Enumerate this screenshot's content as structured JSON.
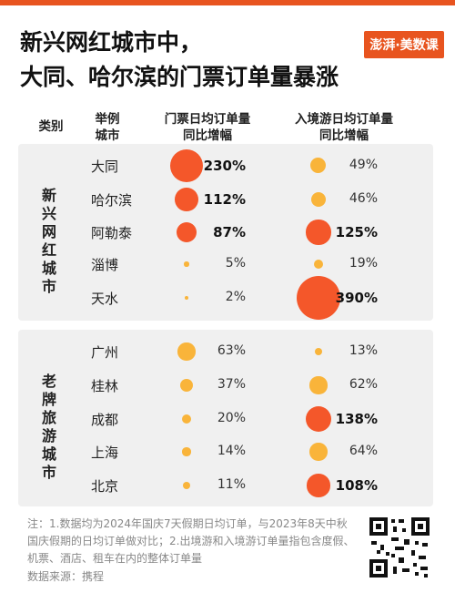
{
  "header": {
    "title_line1": "新兴网红城市中，",
    "title_line2": "大同、哈尔滨的门票订单量暴涨",
    "logo_text": "澎湃·美数课"
  },
  "columns": {
    "category": "类别",
    "city_line1": "举例",
    "city_line2": "城市",
    "ticket_line1": "门票日均订单量",
    "ticket_line2": "同比增幅",
    "inbound_line1": "入境游日均订单量",
    "inbound_line2": "同比增幅"
  },
  "groups": [
    {
      "label": "新兴网红城市"
    },
    {
      "label": "老牌旅游城市"
    }
  ],
  "colors": {
    "high": "#f4572a",
    "low": "#f9b43a",
    "panel": "#f0f0f0",
    "accent": "#e8541f"
  },
  "chart_data": {
    "type": "table",
    "series": [
      {
        "name": "门票日均订单量同比增幅"
      },
      {
        "name": "入境游日均订单量同比增幅"
      }
    ],
    "rows": [
      {
        "group": "新兴网红城市",
        "city": "大同",
        "ticket": 230,
        "ticket_label": "230%",
        "inbound": 49,
        "inbound_label": "49%"
      },
      {
        "group": "新兴网红城市",
        "city": "哈尔滨",
        "ticket": 112,
        "ticket_label": "112%",
        "inbound": 46,
        "inbound_label": "46%"
      },
      {
        "group": "新兴网红城市",
        "city": "阿勒泰",
        "ticket": 87,
        "ticket_label": "87%",
        "inbound": 125,
        "inbound_label": "125%"
      },
      {
        "group": "新兴网红城市",
        "city": "淄博",
        "ticket": 5,
        "ticket_label": "5%",
        "inbound": 19,
        "inbound_label": "19%"
      },
      {
        "group": "新兴网红城市",
        "city": "天水",
        "ticket": 2,
        "ticket_label": "2%",
        "inbound": 390,
        "inbound_label": "390%"
      },
      {
        "group": "老牌旅游城市",
        "city": "广州",
        "ticket": 63,
        "ticket_label": "63%",
        "inbound": 13,
        "inbound_label": "13%"
      },
      {
        "group": "老牌旅游城市",
        "city": "桂林",
        "ticket": 37,
        "ticket_label": "37%",
        "inbound": 62,
        "inbound_label": "62%"
      },
      {
        "group": "老牌旅游城市",
        "city": "成都",
        "ticket": 20,
        "ticket_label": "20%",
        "inbound": 138,
        "inbound_label": "138%"
      },
      {
        "group": "老牌旅游城市",
        "city": "上海",
        "ticket": 14,
        "ticket_label": "14%",
        "inbound": 64,
        "inbound_label": "64%"
      },
      {
        "group": "老牌旅游城市",
        "city": "北京",
        "ticket": 11,
        "ticket_label": "11%",
        "inbound": 108,
        "inbound_label": "108%"
      }
    ]
  },
  "footer": {
    "note": "注：1.数据均为2024年国庆7天假期日均订单，与2023年8天中秋国庆假期的日均订单做对比；2.出境游和入境游订单量指包含度假、机票、酒店、租车在内的整体订单量",
    "source": "数据来源：携程"
  }
}
